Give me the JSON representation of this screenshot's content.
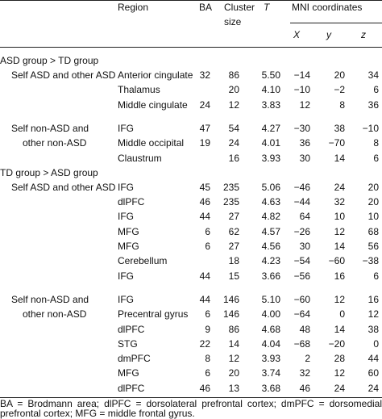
{
  "header": {
    "region": "Region",
    "ba": "BA",
    "cluster_size": "Cluster size",
    "t": "T",
    "mni": "MNI coordinates",
    "x": "X",
    "y": "y",
    "z": "z"
  },
  "groups": [
    {
      "label": "ASD group > TD group",
      "subgroups": [
        {
          "label_lines": [
            "Self ASD and other ASD"
          ],
          "rows": [
            [
              "Anterior cingulate",
              "32",
              "86",
              "5.50",
              "−14",
              "20",
              "34"
            ],
            [
              "Thalamus",
              null,
              "20",
              "4.10",
              "−10",
              "−2",
              "6"
            ],
            [
              "Middle cingulate",
              "24",
              "12",
              "3.83",
              "12",
              "8",
              "36"
            ]
          ]
        },
        {
          "label_lines": [
            "Self non-ASD and",
            "other non-ASD"
          ],
          "rows": [
            [
              "IFG",
              "47",
              "54",
              "4.27",
              "−30",
              "38",
              "−10"
            ],
            [
              "Middle occipital",
              "19",
              "24",
              "4.01",
              "36",
              "−70",
              "8"
            ],
            [
              "Claustrum",
              null,
              "16",
              "3.93",
              "30",
              "14",
              "6"
            ]
          ]
        }
      ]
    },
    {
      "label": "TD group > ASD group",
      "subgroups": [
        {
          "label_lines": [
            "Self ASD and other ASD"
          ],
          "rows": [
            [
              "IFG",
              "45",
              "235",
              "5.06",
              "−46",
              "24",
              "20"
            ],
            [
              "dlPFC",
              "46",
              "235",
              "4.63",
              "−44",
              "32",
              "20"
            ],
            [
              "IFG",
              "44",
              "27",
              "4.82",
              "64",
              "10",
              "10"
            ],
            [
              "MFG",
              "6",
              "62",
              "4.57",
              "−26",
              "12",
              "68"
            ],
            [
              "MFG",
              "6",
              "27",
              "4.56",
              "30",
              "14",
              "56"
            ],
            [
              "Cerebellum",
              null,
              "18",
              "4.23",
              "−54",
              "−60",
              "−38"
            ],
            [
              "IFG",
              "44",
              "15",
              "3.66",
              "−56",
              "16",
              "6"
            ]
          ]
        },
        {
          "label_lines": [
            "Self non-ASD and",
            "other non-ASD"
          ],
          "rows": [
            [
              "IFG",
              "44",
              "146",
              "5.10",
              "−60",
              "12",
              "16"
            ],
            [
              "Precentral gyrus",
              "6",
              "146",
              "4.00",
              "−64",
              "0",
              "12"
            ],
            [
              "dlPFC",
              "9",
              "86",
              "4.68",
              "48",
              "14",
              "38"
            ],
            [
              "STG",
              "22",
              "14",
              "4.04",
              "−68",
              "−20",
              "0"
            ],
            [
              "dmPFC",
              "8",
              "12",
              "3.93",
              "2",
              "28",
              "44"
            ],
            [
              "MFG",
              "6",
              "20",
              "3.74",
              "32",
              "12",
              "60"
            ],
            [
              "dlPFC",
              "46",
              "13",
              "3.68",
              "46",
              "24",
              "24"
            ]
          ]
        }
      ]
    }
  ],
  "footnote": "BA = Brodmann area; dlPFC = dorsolateral prefrontal cortex; dmPFC = dorsomedial prefrontal cortex; MFG = middle frontal gyrus."
}
